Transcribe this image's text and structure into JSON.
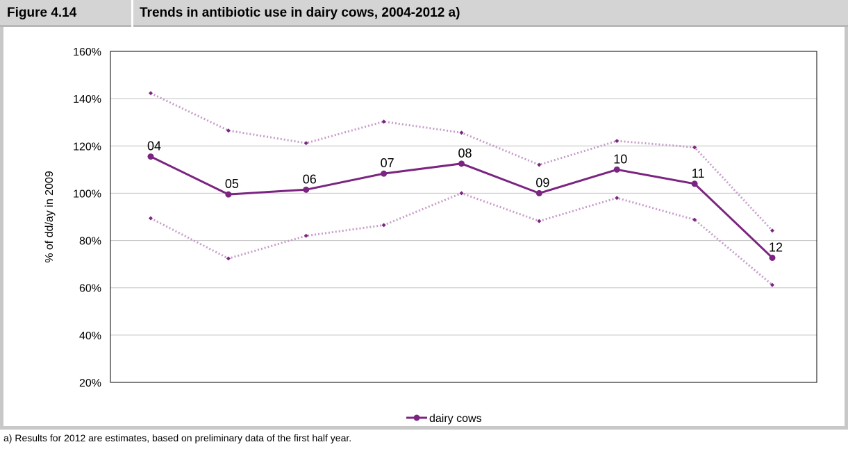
{
  "figure": {
    "number": "Figure 4.14",
    "title": "Trends in antibiotic use in dairy cows, 2004-2012 a)"
  },
  "footnote": "a) Results for 2012 are estimates, based on preliminary data of the first half year.",
  "colors": {
    "series": "#7b2481",
    "bounds": "#c79ccb",
    "grid": "#c0c0c0",
    "header": "#d4d4d4"
  },
  "chart_data": {
    "type": "line",
    "title": "",
    "ylabel": "% of  dd/ay in 2009",
    "xlabel": "",
    "ylim": [
      20,
      160
    ],
    "yticks": [
      20,
      40,
      60,
      80,
      100,
      120,
      140,
      160
    ],
    "ytick_labels": [
      "20%",
      "40%",
      "60%",
      "80%",
      "100%",
      "120%",
      "140%",
      "160%"
    ],
    "categories": [
      "04",
      "05",
      "06",
      "07",
      "08",
      "09",
      "10",
      "11",
      "12"
    ],
    "grid": true,
    "legend_position": "bottom",
    "series": [
      {
        "name": "dairy cows",
        "values": [
          115.5,
          99.5,
          101.5,
          108.3,
          112.5,
          100,
          110,
          104,
          72.7
        ],
        "style": "solid",
        "data_labels": true
      },
      {
        "values": [
          142.3,
          126.5,
          121.2,
          130.3,
          125.6,
          112,
          122.1,
          119.4,
          84.2
        ],
        "style": "dotted",
        "data_labels": false
      },
      {
        "values": [
          89.4,
          72.4,
          82,
          86.5,
          100,
          88.2,
          98,
          88.8,
          61.2
        ],
        "style": "dotted",
        "data_labels": false
      }
    ]
  }
}
